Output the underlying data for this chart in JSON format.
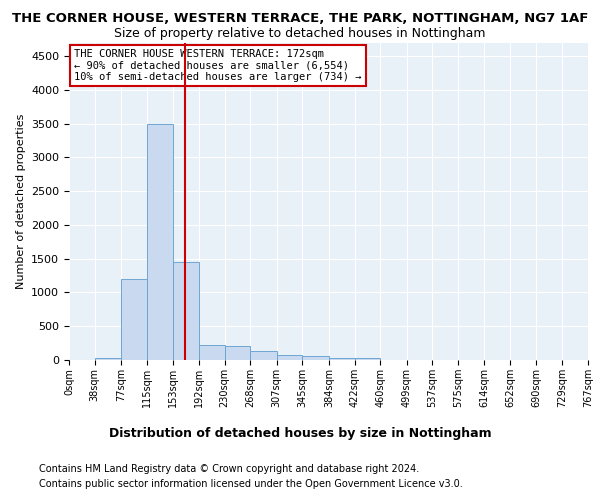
{
  "title": "THE CORNER HOUSE, WESTERN TERRACE, THE PARK, NOTTINGHAM, NG7 1AF",
  "subtitle": "Size of property relative to detached houses in Nottingham",
  "xlabel": "Distribution of detached houses by size in Nottingham",
  "ylabel": "Number of detached properties",
  "footnote1": "Contains HM Land Registry data © Crown copyright and database right 2024.",
  "footnote2": "Contains public sector information licensed under the Open Government Licence v3.0.",
  "annotation_line1": "THE CORNER HOUSE WESTERN TERRACE: 172sqm",
  "annotation_line2": "← 90% of detached houses are smaller (6,554)",
  "annotation_line3": "10% of semi-detached houses are larger (734) →",
  "property_size": 172,
  "bar_edges": [
    0,
    38,
    77,
    115,
    153,
    192,
    230,
    268,
    307,
    345,
    384,
    422,
    460,
    499,
    537,
    575,
    614,
    652,
    690,
    729,
    767
  ],
  "bar_heights": [
    5,
    25,
    1200,
    3500,
    1450,
    220,
    200,
    130,
    80,
    55,
    35,
    25,
    5,
    7,
    2,
    1,
    1,
    0,
    0,
    1
  ],
  "bar_color": "#c9d9f0",
  "bar_edge_color": "#6ea6d1",
  "line_color": "#cc0000",
  "ylim": [
    0,
    4700
  ],
  "yticks": [
    0,
    500,
    1000,
    1500,
    2000,
    2500,
    3000,
    3500,
    4000,
    4500
  ],
  "bg_color": "#e8f0f8",
  "grid_color": "#ffffff",
  "title_fontsize": 9.5,
  "subtitle_fontsize": 9
}
